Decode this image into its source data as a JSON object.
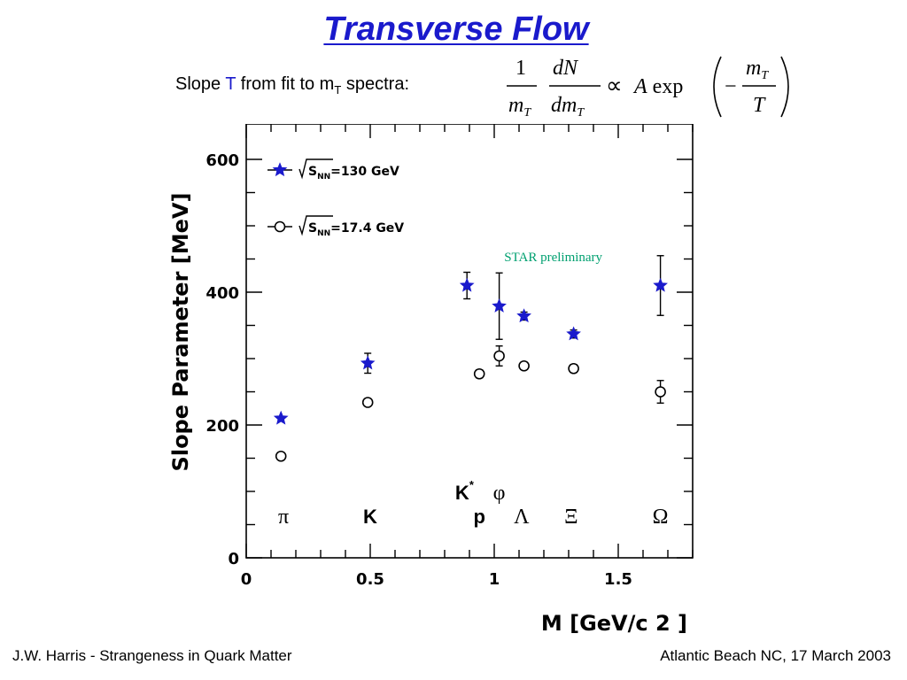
{
  "slide": {
    "title": "Transverse Flow",
    "subtitle_prefix": "Slope ",
    "subtitle_symbol": "T",
    "subtitle_mid": " from fit to m",
    "subtitle_sub": "T",
    "subtitle_suffix": " spectra:",
    "formula": {
      "num1": "1",
      "den1": "m_T",
      "num2": "dN",
      "den2": "dm_T",
      "prop": "∝",
      "rhs": "A exp",
      "minus": "−",
      "num3": "m_T",
      "den3": "T"
    }
  },
  "footer": {
    "left": "J.W. Harris - Strangeness in Quark Matter",
    "right": "Atlantic Beach NC, 17 March 2003"
  },
  "colors": {
    "title": "#1a1acc",
    "star_series": "#1a1acc",
    "annotation": "#00a070"
  },
  "chart_data": {
    "type": "scatter",
    "xlabel": "M [GeV/c  2  ]",
    "ylabel": "Slope Parameter [MeV]",
    "xlim": [
      0,
      1.8
    ],
    "ylim": [
      0,
      600
    ],
    "x_ticks": [
      "0",
      "0.5",
      "1",
      "1.5"
    ],
    "y_ticks": [
      "0",
      "200",
      "400",
      "600"
    ],
    "legend_position": "top-left",
    "series": [
      {
        "name": "√S_NN=130 GeV",
        "marker": "filled-star",
        "color": "#1a1acc",
        "points": [
          {
            "x": 0.14,
            "y": 210,
            "err": 4
          },
          {
            "x": 0.49,
            "y": 293,
            "err": 15
          },
          {
            "x": 0.89,
            "y": 410,
            "err": 20
          },
          {
            "x": 1.02,
            "y": 379,
            "err": 50
          },
          {
            "x": 1.12,
            "y": 364,
            "err": 6
          },
          {
            "x": 1.32,
            "y": 337,
            "err": 6
          },
          {
            "x": 1.67,
            "y": 410,
            "err": 45
          }
        ]
      },
      {
        "name": "√S_NN=17.4 GeV",
        "marker": "open-circle",
        "color": "#000000",
        "points": [
          {
            "x": 0.14,
            "y": 153,
            "err": 3
          },
          {
            "x": 0.49,
            "y": 234,
            "err": 3
          },
          {
            "x": 0.94,
            "y": 277,
            "err": 6
          },
          {
            "x": 1.02,
            "y": 304,
            "err": 15
          },
          {
            "x": 1.12,
            "y": 289,
            "err": 4
          },
          {
            "x": 1.32,
            "y": 285,
            "err": 6
          },
          {
            "x": 1.67,
            "y": 250,
            "err": 17
          }
        ]
      }
    ],
    "particle_labels": [
      {
        "text": "π",
        "x": 0.15,
        "y": 52,
        "style": "serif"
      },
      {
        "text": "K",
        "x": 0.5,
        "y": 52,
        "style": "bold"
      },
      {
        "text": "p",
        "x": 0.94,
        "y": 52,
        "style": "bold"
      },
      {
        "text": "K*",
        "x": 0.88,
        "y": 88,
        "style": "bold"
      },
      {
        "text": "φ",
        "x": 1.02,
        "y": 88,
        "style": "serif"
      },
      {
        "text": "Λ",
        "x": 1.11,
        "y": 52,
        "style": "serif"
      },
      {
        "text": "Ξ",
        "x": 1.31,
        "y": 52,
        "style": "serif"
      },
      {
        "text": "Ω",
        "x": 1.67,
        "y": 52,
        "style": "serif"
      }
    ],
    "annotation": {
      "text": "STAR preliminary",
      "x": 1.04,
      "y": 447
    }
  }
}
